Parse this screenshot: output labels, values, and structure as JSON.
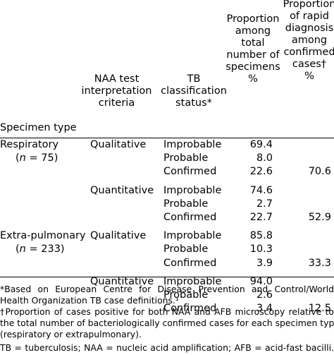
{
  "header": {
    "specimen_type": "Specimen type",
    "naa_line1": "NAA test",
    "naa_line2": "interpretation",
    "naa_line3": "criteria",
    "tb_line1": "TB",
    "tb_line2": "classification",
    "tb_line3": "status*",
    "prop_total_line1": "Proportion",
    "prop_total_line2": "among",
    "prop_total_line3": "total",
    "prop_total_line4": "number of",
    "prop_total_line5": "specimens",
    "prop_total_line6": "%",
    "prop_rapid_line1": "Proportion",
    "prop_rapid_line2": "of rapid",
    "prop_rapid_line3": "diagnosis",
    "prop_rapid_line4": "among",
    "prop_rapid_line5": "confirmed",
    "prop_rapid_line6": "cases†",
    "prop_rapid_line7": "%"
  },
  "groups": [
    {
      "specimen": "Respiratory",
      "n_prefix": "(",
      "n_var": "n",
      "n_value": " = 75)",
      "blocks": [
        {
          "criteria": "Qualitative",
          "rows": [
            {
              "status": "Improbable",
              "pct_total": "69.4",
              "pct_rapid": ""
            },
            {
              "status": "Probable",
              "pct_total": "8.0",
              "pct_rapid": ""
            },
            {
              "status": "Confirmed",
              "pct_total": "22.6",
              "pct_rapid": "70.6"
            }
          ]
        },
        {
          "criteria": "Quantitative",
          "rows": [
            {
              "status": "Improbable",
              "pct_total": "74.6",
              "pct_rapid": ""
            },
            {
              "status": "Probable",
              "pct_total": "2.7",
              "pct_rapid": ""
            },
            {
              "status": "Confirmed",
              "pct_total": "22.7",
              "pct_rapid": "52.9"
            }
          ]
        }
      ]
    },
    {
      "specimen": "Extra-pulmonary",
      "n_prefix": "(",
      "n_var": "n",
      "n_value": " = 233)",
      "blocks": [
        {
          "criteria": "Qualitative",
          "rows": [
            {
              "status": "Improbable",
              "pct_total": "85.8",
              "pct_rapid": ""
            },
            {
              "status": "Probable",
              "pct_total": "10.3",
              "pct_rapid": ""
            },
            {
              "status": "Confirmed",
              "pct_total": "3.9",
              "pct_rapid": "33.3"
            }
          ]
        },
        {
          "criteria": "Quantitative",
          "rows": [
            {
              "status": "Improbable",
              "pct_total": "94.0",
              "pct_rapid": ""
            },
            {
              "status": "Probable",
              "pct_total": "2.6",
              "pct_rapid": ""
            },
            {
              "status": "Confirmed",
              "pct_total": "3.4",
              "pct_rapid": "12.5"
            }
          ]
        }
      ]
    }
  ],
  "footnotes": {
    "star_line1": "*Based on European Centre for Disease Prevention and Control/World",
    "star_line2": "Health Organization TB case definitions.¹",
    "dagger_line1": "†Proportion of cases positive for both NAA and AFB microscopy relative to",
    "dagger_line2": "the total number of bacteriologically confirmed cases for each specimen type",
    "dagger_line3": "(respiratory or extrapulmonary).",
    "abbrev": "TB = tuberculosis; NAA = nucleic acid amplification; AFB = acid-fast bacilli."
  }
}
